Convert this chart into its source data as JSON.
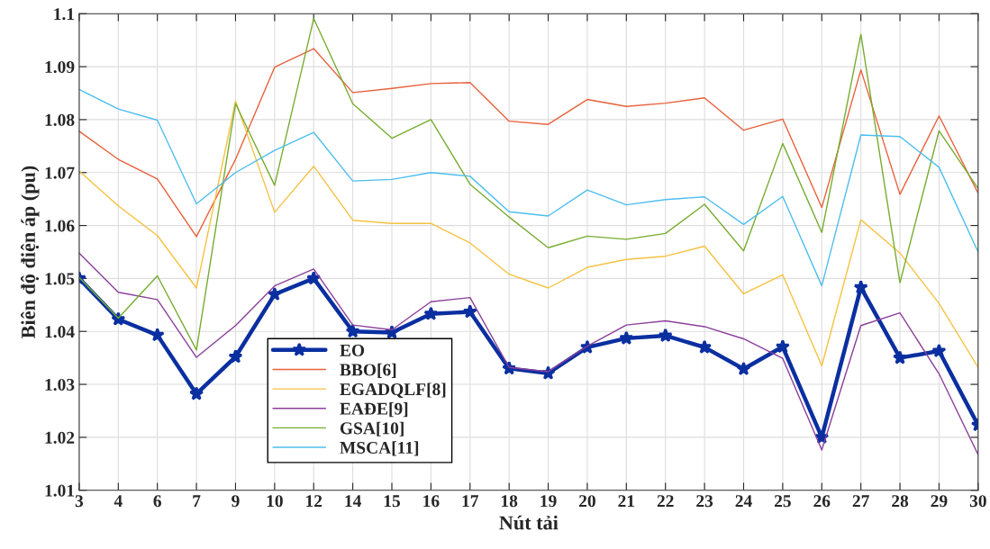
{
  "chart_data": {
    "type": "line",
    "xlabel": "Nút tải",
    "ylabel": "Biên độ điện áp (pu)",
    "categories": [
      "3",
      "4",
      "6",
      "7",
      "9",
      "10",
      "12",
      "14",
      "15",
      "16",
      "17",
      "18",
      "19",
      "20",
      "21",
      "22",
      "23",
      "24",
      "25",
      "26",
      "27",
      "28",
      "29",
      "30"
    ],
    "series": [
      {
        "name": "EO",
        "color": "#0a2fa0",
        "marker": "star",
        "values": [
          1.05,
          1.0423,
          1.0393,
          1.0282,
          1.0352,
          1.047,
          1.05,
          1.04,
          1.0398,
          1.0433,
          1.0437,
          1.033,
          1.0321,
          1.037,
          1.0387,
          1.0392,
          1.037,
          1.0329,
          1.0371,
          1.02,
          1.0483,
          1.035,
          1.0363,
          1.0223
        ]
      },
      {
        "name": "BBO[6]",
        "color": "#e8603a",
        "values": [
          1.0778,
          1.0725,
          1.0688,
          1.0579,
          1.0725,
          1.0899,
          1.0934,
          1.0851,
          1.0859,
          1.0868,
          1.087,
          1.0797,
          1.0791,
          1.0838,
          1.0825,
          1.0831,
          1.0841,
          1.078,
          1.0801,
          1.0634,
          1.0894,
          1.0659,
          1.0807,
          1.0661
        ]
      },
      {
        "name": "EGADQLF[8]",
        "color": "#f5c242",
        "values": [
          1.0703,
          1.0637,
          1.0581,
          1.0482,
          1.0835,
          1.0625,
          1.0712,
          1.061,
          1.0604,
          1.0604,
          1.0567,
          1.0508,
          1.0482,
          1.0521,
          1.0536,
          1.0542,
          1.0561,
          1.0471,
          1.0507,
          1.0335,
          1.0611,
          1.0548,
          1.0453,
          1.0332
        ]
      },
      {
        "name": "EAĐE[9]",
        "color": "#8a3f9a",
        "values": [
          1.0548,
          1.0474,
          1.046,
          1.0351,
          1.0411,
          1.0486,
          1.0518,
          1.0412,
          1.0403,
          1.0456,
          1.0464,
          1.0332,
          1.0324,
          1.0372,
          1.0412,
          1.042,
          1.0409,
          1.0386,
          1.0349,
          1.0176,
          1.0411,
          1.0435,
          1.032,
          1.0167
        ]
      },
      {
        "name": "GSA[10]",
        "color": "#77ac30",
        "values": [
          1.0502,
          1.0425,
          1.0505,
          1.0365,
          1.083,
          1.0676,
          1.0991,
          1.083,
          1.0765,
          1.08,
          1.0678,
          1.0616,
          1.0558,
          1.058,
          1.0574,
          1.0585,
          1.064,
          1.0552,
          1.0755,
          1.0587,
          1.0961,
          1.0492,
          1.0779,
          1.067
        ]
      },
      {
        "name": "MSCA[11]",
        "color": "#4dbeee",
        "values": [
          1.0857,
          1.082,
          1.0799,
          1.0641,
          1.07,
          1.0742,
          1.0776,
          1.0684,
          1.0687,
          1.07,
          1.0693,
          1.0626,
          1.0618,
          1.0667,
          1.0639,
          1.0649,
          1.0654,
          1.0602,
          1.0655,
          1.0486,
          1.0771,
          1.0768,
          1.071,
          1.055
        ]
      }
    ],
    "ylim": [
      1.01,
      1.1
    ],
    "yticks": [
      1.01,
      1.02,
      1.03,
      1.04,
      1.05,
      1.06,
      1.07,
      1.08,
      1.09,
      1.1
    ],
    "grid": true,
    "legend": "bottom left"
  }
}
